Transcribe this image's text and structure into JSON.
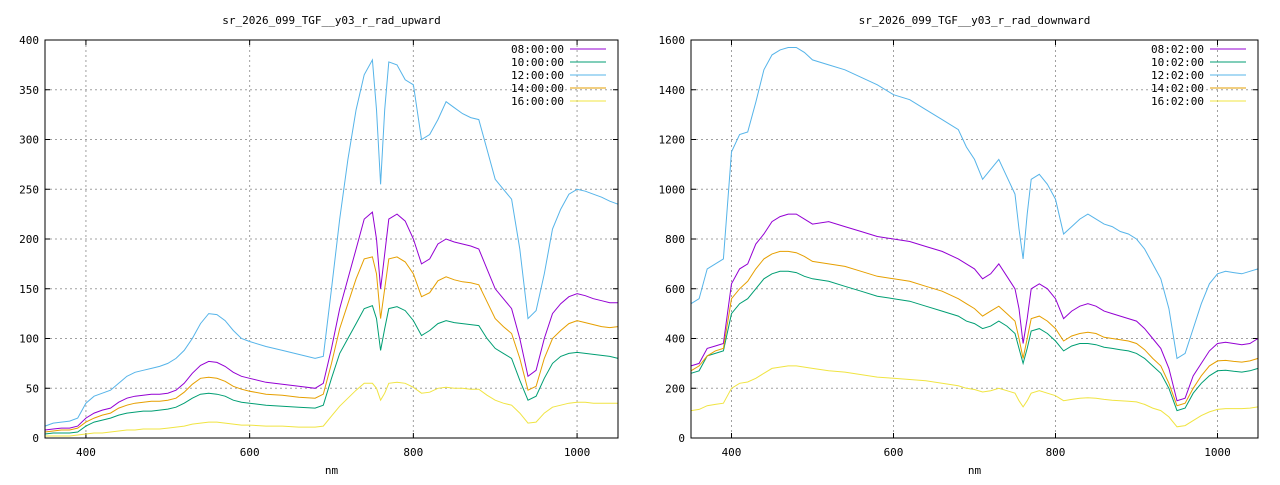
{
  "chart_data": [
    {
      "type": "line",
      "title": "sr_2026_099_TGF__y03_r_rad_upward",
      "xlabel": "nm",
      "ylabel": "",
      "xlim": [
        350,
        1050
      ],
      "ylim": [
        0,
        400
      ],
      "xticks": [
        400,
        600,
        800,
        1000
      ],
      "yticks": [
        0,
        50,
        100,
        150,
        200,
        250,
        300,
        350,
        400
      ],
      "grid": true,
      "legend_position": "top-right",
      "x": [
        350,
        360,
        370,
        380,
        390,
        400,
        410,
        420,
        430,
        440,
        450,
        460,
        470,
        480,
        490,
        500,
        510,
        520,
        530,
        540,
        550,
        560,
        570,
        580,
        590,
        600,
        620,
        640,
        660,
        680,
        690,
        700,
        710,
        720,
        730,
        740,
        750,
        755,
        760,
        765,
        770,
        780,
        790,
        800,
        810,
        820,
        830,
        840,
        850,
        860,
        870,
        880,
        890,
        900,
        910,
        920,
        930,
        940,
        950,
        960,
        970,
        980,
        990,
        1000,
        1010,
        1020,
        1030,
        1040,
        1050
      ],
      "series": [
        {
          "name": "08:00:00",
          "color": "#9400d3",
          "values": [
            8,
            9,
            10,
            10,
            12,
            20,
            25,
            28,
            30,
            36,
            40,
            42,
            43,
            44,
            44,
            45,
            48,
            55,
            65,
            73,
            77,
            76,
            72,
            66,
            62,
            60,
            56,
            54,
            52,
            50,
            55,
            90,
            130,
            160,
            190,
            220,
            227,
            200,
            150,
            185,
            220,
            225,
            218,
            200,
            175,
            180,
            195,
            200,
            197,
            195,
            193,
            190,
            170,
            150,
            140,
            130,
            100,
            62,
            68,
            100,
            125,
            135,
            142,
            145,
            143,
            140,
            138,
            136,
            136
          ]
        },
        {
          "name": "10:00:00",
          "color": "#009e73",
          "values": [
            4,
            5,
            5,
            5,
            6,
            12,
            16,
            18,
            20,
            23,
            25,
            26,
            27,
            27,
            28,
            29,
            31,
            35,
            40,
            44,
            45,
            44,
            42,
            38,
            36,
            35,
            33,
            32,
            31,
            30,
            33,
            60,
            85,
            100,
            115,
            130,
            133,
            120,
            88,
            110,
            130,
            132,
            128,
            118,
            103,
            108,
            115,
            118,
            116,
            115,
            114,
            113,
            100,
            90,
            85,
            80,
            58,
            38,
            42,
            60,
            75,
            82,
            85,
            86,
            85,
            84,
            83,
            82,
            80
          ]
        },
        {
          "name": "12:00:00",
          "color": "#56b4e9",
          "values": [
            12,
            15,
            16,
            17,
            20,
            35,
            42,
            45,
            48,
            55,
            62,
            66,
            68,
            70,
            72,
            75,
            80,
            88,
            100,
            115,
            125,
            124,
            118,
            108,
            100,
            97,
            92,
            88,
            84,
            80,
            82,
            150,
            220,
            280,
            330,
            365,
            380,
            330,
            255,
            330,
            378,
            375,
            360,
            355,
            300,
            305,
            320,
            338,
            332,
            326,
            322,
            320,
            290,
            260,
            250,
            240,
            190,
            120,
            128,
            165,
            210,
            230,
            245,
            250,
            248,
            245,
            242,
            238,
            235
          ]
        },
        {
          "name": "14:00:00",
          "color": "#e69f00",
          "values": [
            6,
            7,
            8,
            8,
            10,
            16,
            20,
            23,
            25,
            30,
            33,
            35,
            36,
            37,
            37,
            38,
            40,
            46,
            54,
            60,
            61,
            60,
            57,
            52,
            49,
            47,
            44,
            43,
            41,
            40,
            44,
            75,
            110,
            135,
            160,
            180,
            182,
            165,
            120,
            150,
            180,
            182,
            177,
            165,
            142,
            146,
            158,
            162,
            159,
            157,
            156,
            154,
            137,
            120,
            112,
            105,
            80,
            48,
            52,
            80,
            100,
            108,
            115,
            118,
            116,
            114,
            112,
            111,
            112
          ]
        },
        {
          "name": "16:00:00",
          "color": "#f0e442",
          "values": [
            2,
            2,
            2,
            2,
            3,
            4,
            5,
            5,
            6,
            7,
            8,
            8,
            9,
            9,
            9,
            10,
            11,
            12,
            14,
            15,
            16,
            16,
            15,
            14,
            13,
            13,
            12,
            12,
            11,
            11,
            12,
            22,
            32,
            40,
            48,
            55,
            55,
            50,
            38,
            45,
            55,
            56,
            55,
            51,
            45,
            46,
            50,
            51,
            50,
            50,
            49,
            49,
            43,
            38,
            35,
            33,
            25,
            15,
            16,
            25,
            31,
            33,
            35,
            36,
            36,
            35,
            35,
            35,
            35
          ]
        }
      ],
      "extra_series_note": ""
    },
    {
      "type": "line",
      "title": "sr_2026_099_TGF__y03_r_rad_downward",
      "xlabel": "nm",
      "ylabel": "",
      "xlim": [
        350,
        1050
      ],
      "ylim": [
        0,
        1600
      ],
      "xticks": [
        400,
        600,
        800,
        1000
      ],
      "yticks": [
        0,
        200,
        400,
        600,
        800,
        1000,
        1200,
        1400,
        1600
      ],
      "grid": true,
      "legend_position": "top-right",
      "x": [
        350,
        360,
        370,
        380,
        390,
        400,
        410,
        420,
        430,
        440,
        450,
        460,
        470,
        480,
        490,
        500,
        520,
        540,
        560,
        580,
        600,
        620,
        640,
        660,
        680,
        690,
        700,
        710,
        720,
        730,
        740,
        750,
        755,
        760,
        765,
        770,
        780,
        790,
        800,
        810,
        820,
        830,
        840,
        850,
        860,
        870,
        880,
        890,
        900,
        910,
        920,
        930,
        940,
        950,
        960,
        970,
        980,
        990,
        1000,
        1010,
        1020,
        1030,
        1040,
        1050
      ],
      "series": [
        {
          "name": "08:02:00",
          "color": "#9400d3",
          "values": [
            290,
            300,
            360,
            370,
            380,
            620,
            680,
            700,
            780,
            820,
            870,
            890,
            900,
            900,
            880,
            860,
            870,
            850,
            830,
            810,
            800,
            790,
            770,
            750,
            720,
            700,
            680,
            640,
            660,
            700,
            650,
            600,
            520,
            380,
            480,
            600,
            620,
            600,
            560,
            480,
            510,
            530,
            540,
            530,
            510,
            500,
            490,
            480,
            470,
            440,
            400,
            360,
            280,
            150,
            160,
            250,
            300,
            350,
            380,
            385,
            380,
            375,
            380,
            400
          ]
        },
        {
          "name": "10:02:00",
          "color": "#009e73",
          "values": [
            260,
            270,
            330,
            340,
            350,
            500,
            540,
            560,
            600,
            640,
            660,
            670,
            670,
            665,
            650,
            640,
            630,
            610,
            590,
            570,
            560,
            550,
            530,
            510,
            490,
            470,
            460,
            440,
            450,
            470,
            450,
            420,
            360,
            300,
            360,
            430,
            440,
            420,
            390,
            350,
            370,
            380,
            380,
            375,
            365,
            360,
            355,
            350,
            340,
            320,
            290,
            260,
            200,
            110,
            120,
            180,
            220,
            250,
            270,
            272,
            268,
            265,
            270,
            280
          ]
        },
        {
          "name": "12:02:00",
          "color": "#56b4e9",
          "values": [
            540,
            560,
            680,
            700,
            720,
            1150,
            1220,
            1230,
            1350,
            1480,
            1540,
            1560,
            1570,
            1570,
            1550,
            1520,
            1500,
            1480,
            1450,
            1420,
            1380,
            1360,
            1320,
            1280,
            1240,
            1170,
            1120,
            1040,
            1080,
            1120,
            1050,
            980,
            840,
            720,
            900,
            1040,
            1060,
            1020,
            960,
            820,
            850,
            880,
            900,
            880,
            860,
            850,
            830,
            820,
            800,
            760,
            700,
            640,
            520,
            320,
            340,
            440,
            540,
            620,
            660,
            670,
            665,
            660,
            670,
            680
          ]
        },
        {
          "name": "14:02:00",
          "color": "#e69f00",
          "values": [
            270,
            290,
            330,
            350,
            360,
            560,
            600,
            630,
            680,
            720,
            740,
            750,
            750,
            745,
            730,
            710,
            700,
            690,
            670,
            650,
            640,
            630,
            610,
            590,
            560,
            540,
            520,
            490,
            510,
            530,
            500,
            470,
            400,
            320,
            400,
            480,
            490,
            470,
            440,
            390,
            410,
            420,
            425,
            420,
            405,
            400,
            395,
            390,
            380,
            355,
            320,
            290,
            220,
            130,
            140,
            200,
            250,
            290,
            310,
            312,
            308,
            305,
            310,
            320
          ]
        },
        {
          "name": "16:02:00",
          "color": "#f0e442",
          "values": [
            110,
            115,
            130,
            135,
            140,
            200,
            220,
            225,
            240,
            260,
            280,
            285,
            290,
            290,
            285,
            280,
            270,
            265,
            255,
            245,
            240,
            235,
            230,
            220,
            210,
            200,
            195,
            185,
            190,
            200,
            190,
            180,
            150,
            125,
            150,
            180,
            190,
            180,
            170,
            150,
            155,
            160,
            162,
            160,
            155,
            152,
            150,
            148,
            145,
            135,
            120,
            110,
            85,
            45,
            50,
            70,
            90,
            105,
            115,
            118,
            118,
            118,
            120,
            125
          ]
        }
      ],
      "extra_series_note": ""
    }
  ]
}
